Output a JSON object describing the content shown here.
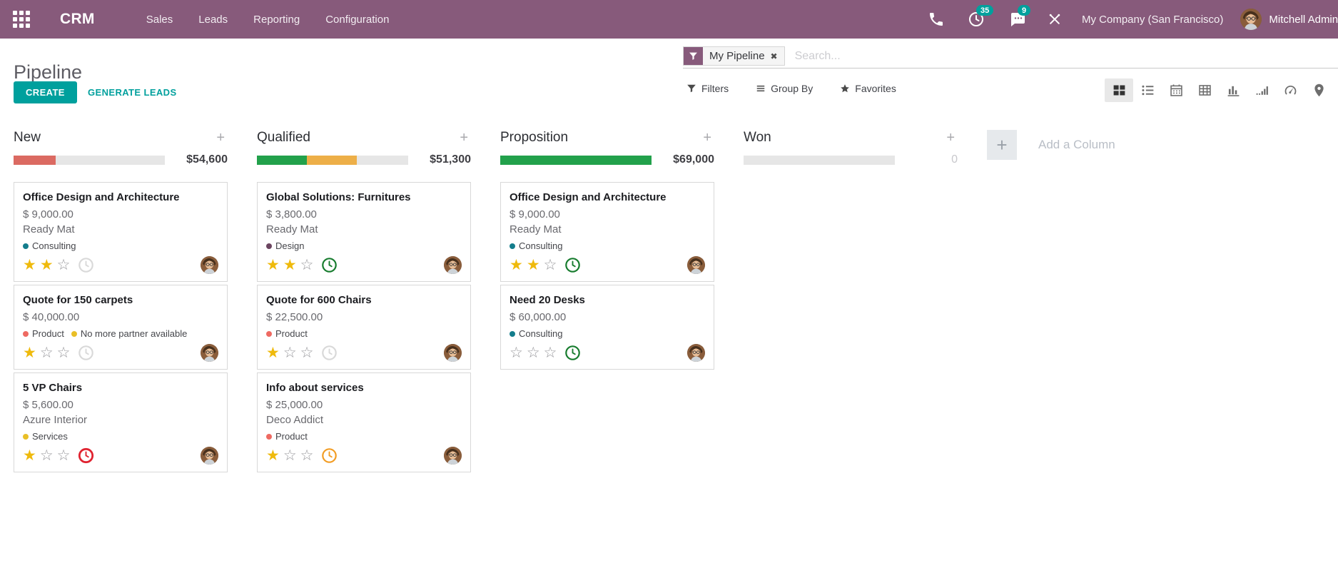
{
  "colors": {
    "topbar_bg": "#875A7B",
    "accent": "#00A09D",
    "segments": {
      "red": "#db6a62",
      "green": "#22a14b",
      "orange": "#edaf48"
    },
    "bar_track": "#e6e6e6",
    "tags": {
      "consulting": "#147d8c",
      "design": "#6b4560",
      "product": "#ee6a62",
      "services": "#e9bf27",
      "warning_yellow": "#e9bf27"
    },
    "clocks": {
      "gray": "#d9d9d9",
      "green": "#177c2e",
      "red": "#e02330",
      "orange": "#f29d25"
    },
    "star_filled": "#efba0c",
    "star_empty": "#97979b"
  },
  "topbar": {
    "brand": "CRM",
    "menus": [
      "Sales",
      "Leads",
      "Reporting",
      "Configuration"
    ],
    "activity_count": "35",
    "message_count": "9",
    "company": "My Company (San Francisco)",
    "user": "Mitchell Admin"
  },
  "control_panel": {
    "title": "Pipeline",
    "create_label": "CREATE",
    "generate_label": "GENERATE LEADS",
    "facet_label": "My Pipeline",
    "search_placeholder": "Search...",
    "filters_label": "Filters",
    "group_by_label": "Group By",
    "favorites_label": "Favorites"
  },
  "view_switcher": [
    "kanban",
    "list",
    "calendar",
    "pivot",
    "graph",
    "cohort",
    "dashboard",
    "map",
    "activity"
  ],
  "active_view": "kanban",
  "kanban": {
    "add_column_label": "Add a Column",
    "columns": [
      {
        "name": "New",
        "amount": "$54,600",
        "muted": false,
        "segments": [
          [
            "red",
            28
          ]
        ],
        "cards": [
          {
            "title": "Office Design and Architecture",
            "amount": "$ 9,000.00",
            "partner": "Ready Mat",
            "tags": [
              [
                "consulting",
                "Consulting"
              ]
            ],
            "stars": 2,
            "clock": "gray"
          },
          {
            "title": "Quote for 150 carpets",
            "amount": "$ 40,000.00",
            "tags": [
              [
                "product",
                "Product"
              ],
              [
                "warning_yellow",
                "No more partner available"
              ]
            ],
            "stars": 1,
            "clock": "gray"
          },
          {
            "title": "5 VP Chairs",
            "amount": "$ 5,600.00",
            "partner": "Azure Interior",
            "tags": [
              [
                "services",
                "Services"
              ]
            ],
            "stars": 1,
            "clock": "red"
          }
        ]
      },
      {
        "name": "Qualified",
        "amount": "$51,300",
        "muted": false,
        "segments": [
          [
            "green",
            33
          ],
          [
            "orange",
            33
          ]
        ],
        "cards": [
          {
            "title": "Global Solutions: Furnitures",
            "amount": "$ 3,800.00",
            "partner": "Ready Mat",
            "tags": [
              [
                "design",
                "Design"
              ]
            ],
            "stars": 2,
            "clock": "green"
          },
          {
            "title": "Quote for 600 Chairs",
            "amount": "$ 22,500.00",
            "tags": [
              [
                "product",
                "Product"
              ]
            ],
            "stars": 1,
            "clock": "gray"
          },
          {
            "title": "Info about services",
            "amount": "$ 25,000.00",
            "partner": "Deco Addict",
            "tags": [
              [
                "product",
                "Product"
              ]
            ],
            "stars": 1,
            "clock": "orange"
          }
        ]
      },
      {
        "name": "Proposition",
        "amount": "$69,000",
        "muted": false,
        "segments": [
          [
            "green",
            100
          ]
        ],
        "cards": [
          {
            "title": "Office Design and Architecture",
            "amount": "$ 9,000.00",
            "partner": "Ready Mat",
            "tags": [
              [
                "consulting",
                "Consulting"
              ]
            ],
            "stars": 2,
            "clock": "green"
          },
          {
            "title": "Need 20 Desks",
            "amount": "$ 60,000.00",
            "tags": [
              [
                "consulting",
                "Consulting"
              ]
            ],
            "stars": 0,
            "clock": "green"
          }
        ]
      },
      {
        "name": "Won",
        "amount": "0",
        "muted": true,
        "segments": [],
        "cards": []
      }
    ]
  }
}
